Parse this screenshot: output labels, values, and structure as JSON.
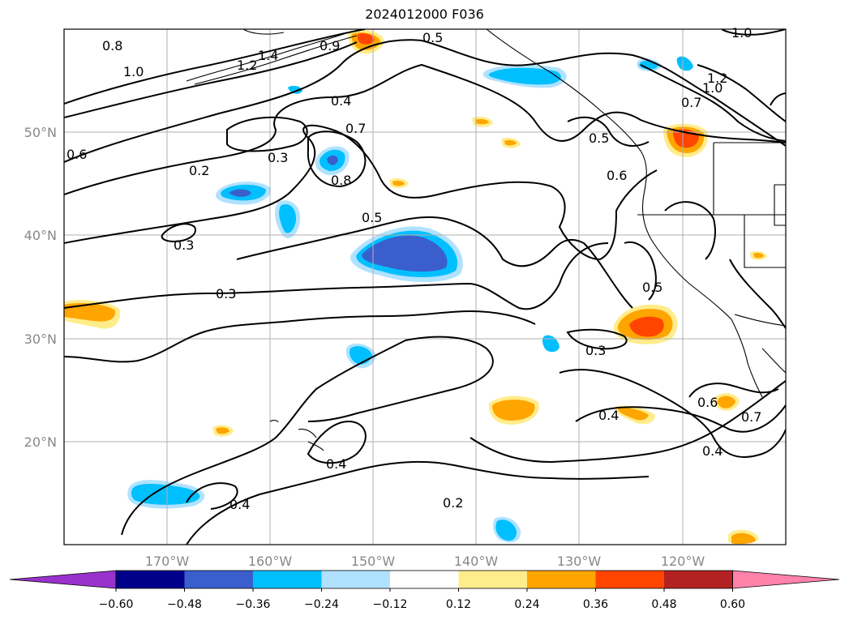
{
  "title": "2024012000 F036",
  "map": {
    "lon_range": [
      -180,
      -110
    ],
    "lat_range": [
      10,
      60
    ],
    "lon_ticks": [
      "170°W",
      "160°W",
      "150°W",
      "140°W",
      "130°W",
      "120°W"
    ],
    "lat_ticks": [
      "50°N",
      "40°N",
      "30°N",
      "20°N"
    ],
    "gridlines": true,
    "contour_labels": [
      "0.8",
      "1.0",
      "1.2",
      "1.4",
      "0.9",
      "0.5",
      "0.7",
      "0.6",
      "0.4",
      "0.3",
      "0.2",
      "0.8",
      "1.2",
      "1.0",
      "0.7",
      "0.5",
      "0.6",
      "0.3",
      "0.3",
      "0.4",
      "0.2",
      "0.5",
      "0.6",
      "0.7",
      "0.4",
      "0.4",
      "0.4",
      "0.5",
      "0.3",
      "1.0"
    ]
  },
  "colorbar": {
    "colors": [
      "#9932cc",
      "#00008b",
      "#3a5fcd",
      "#00bfff",
      "#b0e2ff",
      "#ffffff",
      "#ffec8b",
      "#ffa500",
      "#ff4500",
      "#b22222",
      "#ff82ab"
    ],
    "labels": [
      "−0.60",
      "−0.48",
      "−0.36",
      "−0.24",
      "−0.12",
      "0.12",
      "0.24",
      "0.36",
      "0.48",
      "0.60"
    ]
  }
}
